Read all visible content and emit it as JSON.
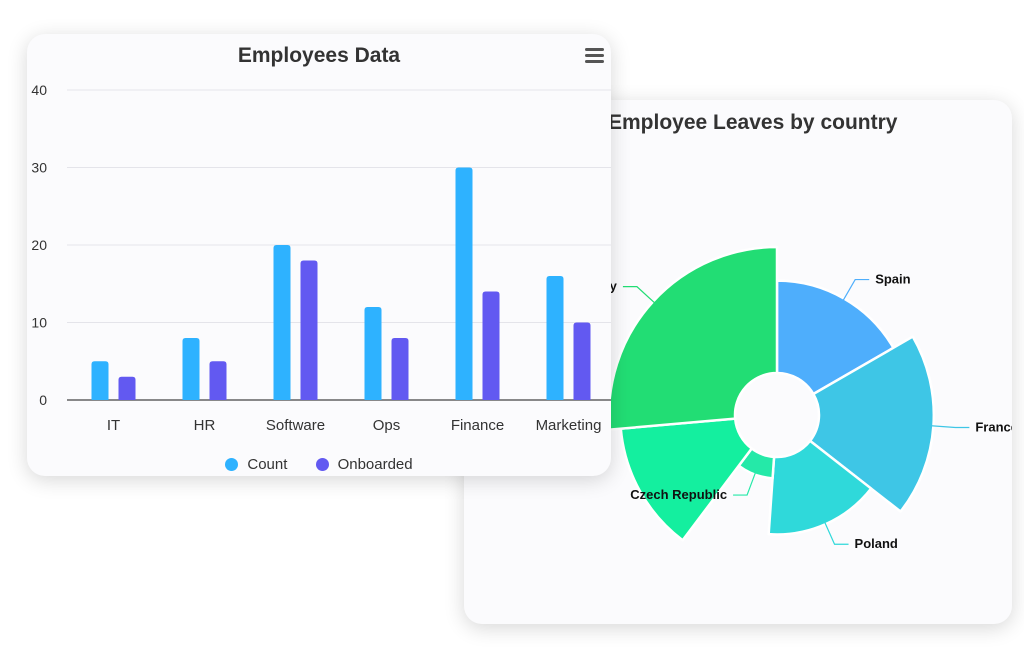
{
  "chart_data": [
    {
      "type": "bar",
      "title": "Employees Data",
      "categories": [
        "IT",
        "HR",
        "Software",
        "Ops",
        "Finance",
        "Marketing"
      ],
      "series": [
        {
          "name": "Count",
          "values": [
            5,
            8,
            20,
            12,
            30,
            16
          ],
          "color": "#2eb2ff"
        },
        {
          "name": "Onboarded",
          "values": [
            3,
            5,
            18,
            8,
            14,
            10
          ],
          "color": "#6259f1"
        }
      ],
      "ylim": [
        0,
        40
      ],
      "yticks": [
        "0",
        "10",
        "20",
        "30",
        "40"
      ],
      "grid": true,
      "legend": "bottom"
    },
    {
      "type": "pie",
      "variant": "polar-area donut",
      "title": "Employee Leaves by country",
      "slices": [
        {
          "label": "Spain",
          "value": 36,
          "color": "#4eaefc"
        },
        {
          "label": "France",
          "value": 42,
          "color": "#3ec6e6"
        },
        {
          "label": "Poland",
          "value": 32,
          "color": "#2fd9da"
        },
        {
          "label": "Czech Republic",
          "value": 17,
          "color": "#25e9a8"
        },
        {
          "label": "",
          "value": 42,
          "color": "#14ef9f"
        },
        {
          "label": "Germany",
          "value": 45,
          "color": "#22dd74"
        }
      ],
      "legend": "none"
    }
  ],
  "menu": {
    "icon": "hamburger-menu-icon"
  }
}
